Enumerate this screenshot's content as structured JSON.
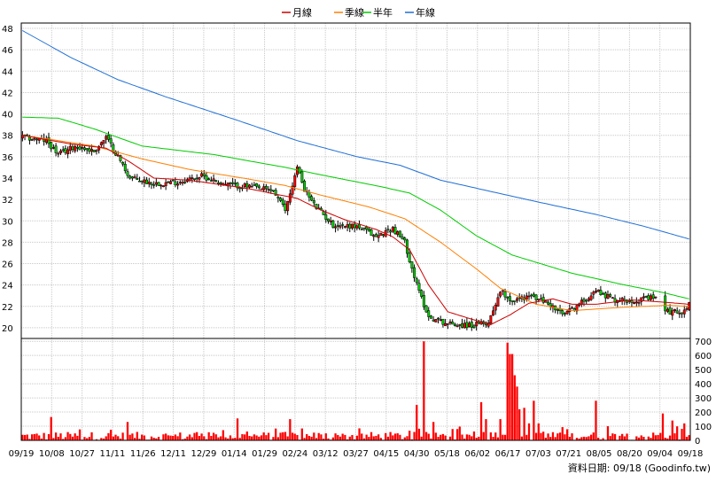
{
  "legend": {
    "items": [
      {
        "label": "月線",
        "color": "#cc0000"
      },
      {
        "label": "季線",
        "color": "#ff7f00"
      },
      {
        "label": "半年",
        "color": "#00cc00"
      },
      {
        "label": "年線",
        "color": "#1f6fd6"
      }
    ]
  },
  "footer": {
    "text": "資料日期: 09/18  (Goodinfo.tw)"
  },
  "chart_data": {
    "type": "candlestick",
    "price_axis": {
      "ticks": [
        "20",
        "22",
        "24",
        "26",
        "28",
        "30",
        "32",
        "34",
        "36",
        "38",
        "40",
        "42",
        "44",
        "46",
        "48"
      ],
      "range": [
        19,
        48.5
      ]
    },
    "volume_axis": {
      "ticks": [
        "0",
        "100",
        "200",
        "300",
        "400",
        "500",
        "600",
        "700"
      ],
      "range": [
        0,
        720
      ]
    },
    "x_ticks": [
      "09/19",
      "10/08",
      "10/27",
      "11/11",
      "11/26",
      "12/11",
      "12/29",
      "01/14",
      "01/29",
      "02/24",
      "03/12",
      "03/27",
      "04/15",
      "04/30",
      "05/18",
      "06/02",
      "06/17",
      "07/03",
      "07/21",
      "08/05",
      "08/20",
      "09/04",
      "09/18"
    ],
    "series": [
      {
        "name": "月線",
        "color": "#cc0000"
      },
      {
        "name": "季線",
        "color": "#ff7f00"
      },
      {
        "name": "半年",
        "color": "#00cc00"
      },
      {
        "name": "年線",
        "color": "#1f6fd6"
      }
    ],
    "price_anchors": [
      {
        "x": 0,
        "v": 37.8
      },
      {
        "x": 10,
        "v": 37.5
      },
      {
        "x": 15,
        "v": 36.2
      },
      {
        "x": 22,
        "v": 37.0
      },
      {
        "x": 30,
        "v": 36.5
      },
      {
        "x": 35,
        "v": 37.8
      },
      {
        "x": 40,
        "v": 36.0
      },
      {
        "x": 45,
        "v": 34.0
      },
      {
        "x": 55,
        "v": 33.5
      },
      {
        "x": 65,
        "v": 33.6
      },
      {
        "x": 75,
        "v": 34.2
      },
      {
        "x": 85,
        "v": 33.4
      },
      {
        "x": 95,
        "v": 33.2
      },
      {
        "x": 105,
        "v": 32.8
      },
      {
        "x": 110,
        "v": 31.0
      },
      {
        "x": 115,
        "v": 35.0
      },
      {
        "x": 118,
        "v": 33.0
      },
      {
        "x": 122,
        "v": 31.5
      },
      {
        "x": 130,
        "v": 29.6
      },
      {
        "x": 140,
        "v": 29.5
      },
      {
        "x": 148,
        "v": 28.5
      },
      {
        "x": 155,
        "v": 29.3
      },
      {
        "x": 160,
        "v": 28.0
      },
      {
        "x": 165,
        "v": 24.0
      },
      {
        "x": 170,
        "v": 21.0
      },
      {
        "x": 178,
        "v": 20.4
      },
      {
        "x": 188,
        "v": 20.2
      },
      {
        "x": 195,
        "v": 20.5
      },
      {
        "x": 200,
        "v": 23.5
      },
      {
        "x": 205,
        "v": 22.5
      },
      {
        "x": 212,
        "v": 23.0
      },
      {
        "x": 220,
        "v": 22.3
      },
      {
        "x": 226,
        "v": 21.2
      },
      {
        "x": 232,
        "v": 22.0
      },
      {
        "x": 240,
        "v": 23.5
      },
      {
        "x": 248,
        "v": 22.6
      },
      {
        "x": 258,
        "v": 22.6
      },
      {
        "x": 265,
        "v": 22.8
      },
      {
        "x": 270,
        "v": 21.5
      },
      {
        "x": 276,
        "v": 21.5
      },
      {
        "x": 279,
        "v": 22.2
      }
    ],
    "ma_monthly": [
      [
        0,
        38.0
      ],
      [
        20,
        37.2
      ],
      [
        35,
        36.8
      ],
      [
        45,
        35.5
      ],
      [
        55,
        34.0
      ],
      [
        70,
        33.8
      ],
      [
        95,
        33.0
      ],
      [
        108,
        32.4
      ],
      [
        115,
        32.1
      ],
      [
        125,
        31.0
      ],
      [
        135,
        30.1
      ],
      [
        148,
        29.2
      ],
      [
        155,
        28.5
      ],
      [
        162,
        27.3
      ],
      [
        170,
        24.0
      ],
      [
        178,
        21.5
      ],
      [
        188,
        20.8
      ],
      [
        196,
        20.3
      ],
      [
        204,
        21.2
      ],
      [
        212,
        22.3
      ],
      [
        222,
        22.7
      ],
      [
        230,
        22.2
      ],
      [
        240,
        22.2
      ],
      [
        255,
        22.6
      ],
      [
        268,
        22.4
      ],
      [
        279,
        22.2
      ]
    ],
    "ma_quarter": [
      [
        0,
        38.0
      ],
      [
        30,
        37.0
      ],
      [
        50,
        35.8
      ],
      [
        70,
        34.8
      ],
      [
        95,
        33.9
      ],
      [
        110,
        33.3
      ],
      [
        125,
        32.4
      ],
      [
        145,
        31.3
      ],
      [
        160,
        30.2
      ],
      [
        175,
        28.0
      ],
      [
        190,
        25.5
      ],
      [
        200,
        23.7
      ],
      [
        215,
        22.2
      ],
      [
        230,
        21.6
      ],
      [
        250,
        21.9
      ],
      [
        270,
        22.1
      ],
      [
        279,
        22.0
      ]
    ],
    "ma_half": [
      [
        0,
        39.7
      ],
      [
        15,
        39.6
      ],
      [
        30,
        38.6
      ],
      [
        50,
        37.0
      ],
      [
        80,
        36.2
      ],
      [
        110,
        35.0
      ],
      [
        125,
        34.3
      ],
      [
        150,
        33.2
      ],
      [
        162,
        32.6
      ],
      [
        175,
        31.0
      ],
      [
        190,
        28.6
      ],
      [
        205,
        26.8
      ],
      [
        230,
        25.1
      ],
      [
        250,
        24.1
      ],
      [
        268,
        23.3
      ],
      [
        279,
        22.7
      ]
    ],
    "ma_year": [
      [
        0,
        47.8
      ],
      [
        20,
        45.3
      ],
      [
        40,
        43.2
      ],
      [
        60,
        41.6
      ],
      [
        90,
        39.4
      ],
      [
        115,
        37.5
      ],
      [
        140,
        36.0
      ],
      [
        158,
        35.2
      ],
      [
        175,
        33.8
      ],
      [
        195,
        32.8
      ],
      [
        215,
        31.8
      ],
      [
        240,
        30.6
      ],
      [
        260,
        29.5
      ],
      [
        279,
        28.3
      ]
    ],
    "volume_baseline": [
      0,
      60,
      20
    ],
    "volume_spikes": [
      {
        "x": 12,
        "v": 165
      },
      {
        "x": 44,
        "v": 130
      },
      {
        "x": 90,
        "v": 155
      },
      {
        "x": 112,
        "v": 150
      },
      {
        "x": 165,
        "v": 250
      },
      {
        "x": 168,
        "v": 700
      },
      {
        "x": 172,
        "v": 130
      },
      {
        "x": 180,
        "v": 80
      },
      {
        "x": 192,
        "v": 270
      },
      {
        "x": 194,
        "v": 150
      },
      {
        "x": 200,
        "v": 150
      },
      {
        "x": 203,
        "v": 690
      },
      {
        "x": 204,
        "v": 610
      },
      {
        "x": 205,
        "v": 610
      },
      {
        "x": 206,
        "v": 460
      },
      {
        "x": 207,
        "v": 380
      },
      {
        "x": 208,
        "v": 220
      },
      {
        "x": 210,
        "v": 230
      },
      {
        "x": 212,
        "v": 120
      },
      {
        "x": 214,
        "v": 280
      },
      {
        "x": 216,
        "v": 120
      },
      {
        "x": 240,
        "v": 280
      },
      {
        "x": 245,
        "v": 100
      },
      {
        "x": 268,
        "v": 190
      },
      {
        "x": 272,
        "v": 140
      },
      {
        "x": 277,
        "v": 120
      }
    ]
  }
}
